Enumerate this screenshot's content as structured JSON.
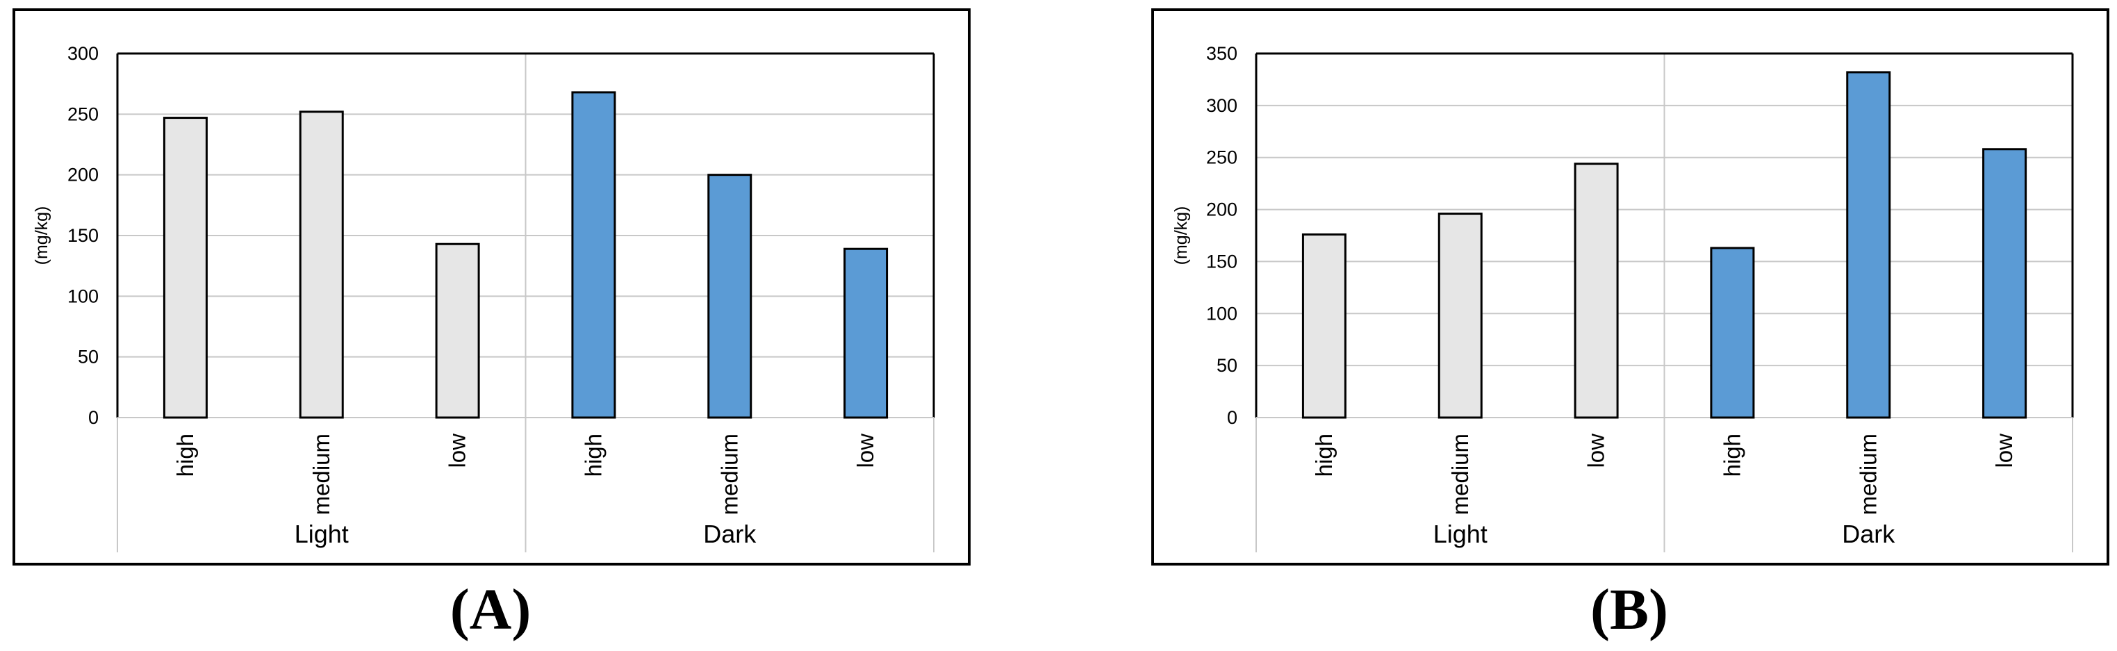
{
  "colors": {
    "light_bar": "#e6e6e6",
    "dark_bar": "#5b9bd5",
    "bar_stroke": "#000000",
    "grid": "#c8c8c8",
    "frame": "#000000"
  },
  "chart_data": [
    {
      "type": "bar",
      "panel_label": "(A)",
      "ylabel": "(mg/kg)",
      "ylim": [
        0,
        300
      ],
      "yticks": [
        0,
        50,
        100,
        150,
        200,
        250,
        300
      ],
      "grid": true,
      "groups": [
        "Light",
        "Dark"
      ],
      "categories": [
        "high",
        "medium",
        "low",
        "high",
        "medium",
        "low"
      ],
      "category_group": [
        "Light",
        "Light",
        "Light",
        "Dark",
        "Dark",
        "Dark"
      ],
      "values": [
        247,
        252,
        143,
        268,
        200,
        139
      ]
    },
    {
      "type": "bar",
      "panel_label": "(B)",
      "ylabel": "(mg/kg)",
      "ylim": [
        0,
        350
      ],
      "yticks": [
        0,
        50,
        100,
        150,
        200,
        250,
        300,
        350
      ],
      "grid": true,
      "groups": [
        "Light",
        "Dark"
      ],
      "categories": [
        "high",
        "medium",
        "low",
        "high",
        "medium",
        "low"
      ],
      "category_group": [
        "Light",
        "Light",
        "Light",
        "Dark",
        "Dark",
        "Dark"
      ],
      "values": [
        176,
        196,
        244,
        163,
        332,
        258
      ]
    }
  ]
}
